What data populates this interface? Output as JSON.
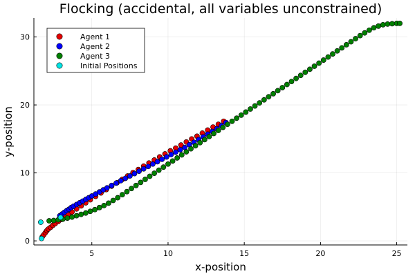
{
  "chart_data": {
    "type": "scatter",
    "title": "Flocking (accidental, all variables unconstrained)",
    "xlabel": "x-position",
    "ylabel": "y-position",
    "xlim": [
      1.2,
      25.7
    ],
    "ylim": [
      -0.6,
      32.8
    ],
    "xticks": [
      5,
      10,
      15,
      20,
      25
    ],
    "yticks": [
      0,
      10,
      20,
      30
    ],
    "grid": true,
    "legend_position": "top-left",
    "series": [
      {
        "name": "Agent 1",
        "color": "#e60000",
        "points": [
          [
            1.75,
            0.6
          ],
          [
            1.85,
            0.9
          ],
          [
            1.95,
            1.2
          ],
          [
            2.05,
            1.5
          ],
          [
            2.15,
            1.75
          ],
          [
            2.3,
            2.0
          ],
          [
            2.45,
            2.3
          ],
          [
            2.6,
            2.55
          ],
          [
            2.8,
            2.85
          ],
          [
            3.0,
            3.15
          ],
          [
            3.2,
            3.5
          ],
          [
            3.45,
            3.85
          ],
          [
            3.7,
            4.25
          ],
          [
            4.0,
            4.7
          ],
          [
            4.3,
            5.15
          ],
          [
            4.6,
            5.6
          ],
          [
            4.9,
            6.05
          ],
          [
            5.25,
            6.55
          ],
          [
            5.6,
            7.05
          ],
          [
            5.95,
            7.55
          ],
          [
            6.3,
            8.05
          ],
          [
            6.65,
            8.55
          ],
          [
            7.0,
            9.05
          ],
          [
            7.35,
            9.55
          ],
          [
            7.7,
            10.05
          ],
          [
            8.05,
            10.5
          ],
          [
            8.4,
            11.0
          ],
          [
            8.75,
            11.45
          ],
          [
            9.1,
            11.9
          ],
          [
            9.45,
            12.35
          ],
          [
            9.8,
            12.8
          ],
          [
            10.15,
            13.25
          ],
          [
            10.5,
            13.65
          ],
          [
            10.85,
            14.1
          ],
          [
            11.2,
            14.55
          ],
          [
            11.55,
            15.0
          ],
          [
            11.9,
            15.4
          ],
          [
            12.25,
            15.85
          ],
          [
            12.6,
            16.3
          ],
          [
            12.95,
            16.75
          ],
          [
            13.3,
            17.15
          ],
          [
            13.65,
            17.6
          ]
        ]
      },
      {
        "name": "Agent 2",
        "color": "#0000ff",
        "points": [
          [
            2.9,
            3.7
          ],
          [
            3.05,
            3.95
          ],
          [
            3.2,
            4.2
          ],
          [
            3.35,
            4.45
          ],
          [
            3.5,
            4.65
          ],
          [
            3.65,
            4.9
          ],
          [
            3.8,
            5.1
          ],
          [
            4.0,
            5.35
          ],
          [
            4.2,
            5.6
          ],
          [
            4.4,
            5.85
          ],
          [
            4.6,
            6.1
          ],
          [
            4.8,
            6.35
          ],
          [
            5.0,
            6.6
          ],
          [
            5.25,
            6.9
          ],
          [
            5.5,
            7.2
          ],
          [
            5.75,
            7.5
          ],
          [
            6.0,
            7.8
          ],
          [
            6.3,
            8.15
          ],
          [
            6.6,
            8.5
          ],
          [
            6.9,
            8.85
          ],
          [
            7.2,
            9.2
          ],
          [
            7.5,
            9.55
          ],
          [
            7.8,
            9.9
          ],
          [
            8.1,
            10.25
          ],
          [
            8.4,
            10.6
          ],
          [
            8.7,
            10.95
          ],
          [
            9.0,
            11.3
          ],
          [
            9.3,
            11.65
          ],
          [
            9.6,
            12.0
          ],
          [
            9.9,
            12.35
          ],
          [
            10.2,
            12.7
          ],
          [
            10.5,
            13.05
          ],
          [
            10.8,
            13.4
          ],
          [
            11.1,
            13.75
          ],
          [
            11.4,
            14.15
          ],
          [
            11.7,
            14.5
          ],
          [
            12.0,
            14.9
          ],
          [
            12.3,
            15.3
          ],
          [
            12.6,
            15.7
          ],
          [
            12.9,
            16.1
          ],
          [
            13.2,
            16.5
          ],
          [
            13.5,
            16.95
          ],
          [
            13.8,
            17.4
          ]
        ]
      },
      {
        "name": "Agent 3",
        "color": "#008000",
        "points": [
          [
            2.2,
            2.95
          ],
          [
            2.5,
            3.0
          ],
          [
            2.8,
            3.1
          ],
          [
            3.1,
            3.2
          ],
          [
            3.4,
            3.35
          ],
          [
            3.7,
            3.5
          ],
          [
            4.0,
            3.7
          ],
          [
            4.3,
            3.9
          ],
          [
            4.6,
            4.1
          ],
          [
            4.9,
            4.35
          ],
          [
            5.2,
            4.6
          ],
          [
            5.5,
            4.9
          ],
          [
            5.8,
            5.2
          ],
          [
            6.1,
            5.55
          ],
          [
            6.4,
            5.95
          ],
          [
            6.7,
            6.35
          ],
          [
            7.0,
            6.8
          ],
          [
            7.3,
            7.25
          ],
          [
            7.6,
            7.7
          ],
          [
            7.9,
            8.15
          ],
          [
            8.2,
            8.6
          ],
          [
            8.5,
            9.05
          ],
          [
            8.8,
            9.5
          ],
          [
            9.1,
            9.95
          ],
          [
            9.4,
            10.4
          ],
          [
            9.7,
            10.85
          ],
          [
            10.0,
            11.3
          ],
          [
            10.3,
            11.75
          ],
          [
            10.6,
            12.2
          ],
          [
            10.9,
            12.65
          ],
          [
            11.2,
            13.1
          ],
          [
            11.5,
            13.55
          ],
          [
            11.8,
            14.0
          ],
          [
            12.1,
            14.45
          ],
          [
            12.4,
            14.9
          ],
          [
            12.7,
            15.35
          ],
          [
            13.0,
            15.8
          ],
          [
            13.3,
            16.25
          ],
          [
            13.6,
            16.7
          ],
          [
            13.9,
            17.15
          ],
          [
            14.2,
            17.6
          ],
          [
            14.5,
            18.05
          ],
          [
            14.8,
            18.5
          ],
          [
            15.1,
            18.95
          ],
          [
            15.4,
            19.4
          ],
          [
            15.7,
            19.85
          ],
          [
            16.0,
            20.3
          ],
          [
            16.3,
            20.75
          ],
          [
            16.6,
            21.2
          ],
          [
            16.9,
            21.65
          ],
          [
            17.2,
            22.1
          ],
          [
            17.5,
            22.55
          ],
          [
            17.8,
            23.0
          ],
          [
            18.1,
            23.45
          ],
          [
            18.4,
            23.9
          ],
          [
            18.7,
            24.35
          ],
          [
            19.0,
            24.8
          ],
          [
            19.3,
            25.25
          ],
          [
            19.6,
            25.7
          ],
          [
            19.9,
            26.15
          ],
          [
            20.2,
            26.6
          ],
          [
            20.5,
            27.05
          ],
          [
            20.8,
            27.5
          ],
          [
            21.1,
            27.95
          ],
          [
            21.4,
            28.4
          ],
          [
            21.7,
            28.85
          ],
          [
            22.0,
            29.3
          ],
          [
            22.3,
            29.75
          ],
          [
            22.6,
            30.2
          ],
          [
            22.9,
            30.6
          ],
          [
            23.2,
            31.0
          ],
          [
            23.5,
            31.35
          ],
          [
            23.8,
            31.6
          ],
          [
            24.1,
            31.8
          ],
          [
            24.4,
            31.9
          ],
          [
            24.7,
            31.95
          ],
          [
            25.0,
            32.0
          ],
          [
            25.2,
            32.0
          ]
        ]
      },
      {
        "name": "Initial Positions",
        "color": "#00e5e5",
        "points": [
          [
            1.7,
            0.35
          ],
          [
            1.65,
            2.75
          ],
          [
            2.95,
            3.45
          ]
        ]
      }
    ]
  }
}
